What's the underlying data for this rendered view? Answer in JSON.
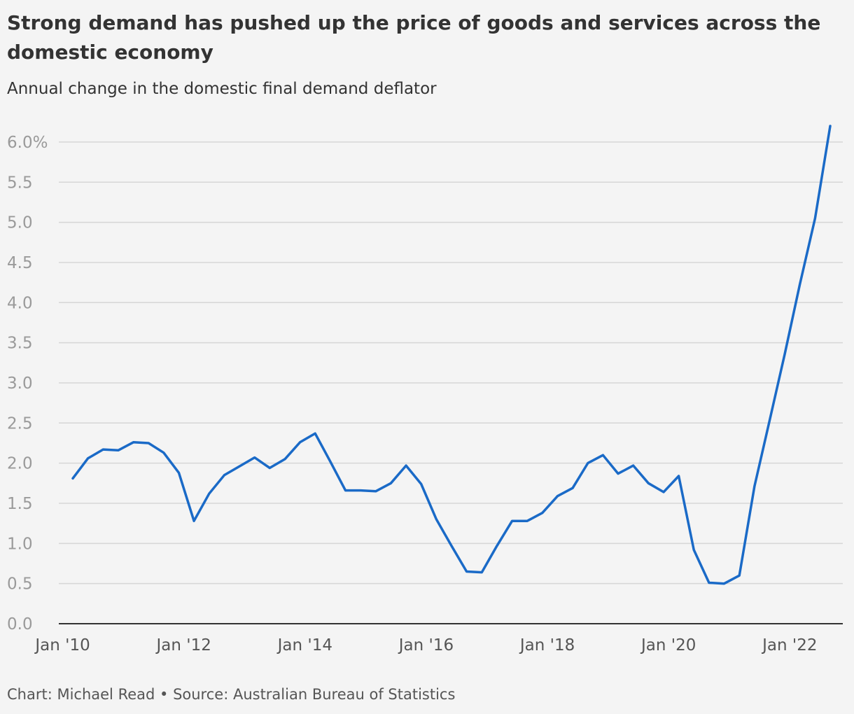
{
  "title": "Strong demand has pushed up the price of goods and services across the domestic economy",
  "subtitle": "Annual change in the domestic final demand deflator",
  "footer": "Chart: Michael Read • Source: Australian Bureau of Statistics",
  "colors": {
    "line": "#1a6ac7",
    "grid": "#d6d6d6",
    "axis": "#333333",
    "background": "#f4f4f4"
  },
  "chart_data": {
    "type": "line",
    "title": "Strong demand has pushed up the price of goods and services across the domestic economy",
    "subtitle": "Annual change in the domestic final demand deflator",
    "xlabel": "",
    "ylabel": "",
    "ylim": [
      0,
      6.2
    ],
    "xlim": [
      "2010-03",
      "2022-09"
    ],
    "grid": true,
    "legend": "none",
    "y_ticks": [
      0,
      0.5,
      1.0,
      1.5,
      2.0,
      2.5,
      3.0,
      3.5,
      4.0,
      4.5,
      5.0,
      5.5,
      6.0
    ],
    "y_tick_labels": [
      "0.0",
      "0.5",
      "1.0",
      "1.5",
      "2.0",
      "2.5",
      "3.0",
      "3.5",
      "4.0",
      "4.5",
      "5.0",
      "5.5",
      "6.0%"
    ],
    "x_ticks": [
      "2010-01",
      "2012-01",
      "2014-01",
      "2016-01",
      "2018-01",
      "2020-01",
      "2022-01"
    ],
    "x_tick_labels": [
      "Jan '10",
      "Jan '12",
      "Jan '14",
      "Jan '16",
      "Jan '18",
      "Jan '20",
      "Jan '22"
    ],
    "series": [
      {
        "x": [
          "2010-03",
          "2010-06",
          "2010-09",
          "2010-12",
          "2011-03",
          "2011-06",
          "2011-09",
          "2011-12",
          "2012-03",
          "2012-06",
          "2012-09",
          "2012-12",
          "2013-03",
          "2013-06",
          "2013-09",
          "2013-12",
          "2014-03",
          "2014-06",
          "2014-09",
          "2014-12",
          "2015-03",
          "2015-06",
          "2015-09",
          "2015-12",
          "2016-03",
          "2016-06",
          "2016-09",
          "2016-12",
          "2017-03",
          "2017-06",
          "2017-09",
          "2017-12",
          "2018-03",
          "2018-06",
          "2018-09",
          "2018-12",
          "2019-03",
          "2019-06",
          "2019-09",
          "2019-12",
          "2020-03",
          "2020-06",
          "2020-09",
          "2020-12",
          "2021-03",
          "2021-06",
          "2021-09",
          "2021-12",
          "2022-03",
          "2022-06",
          "2022-09"
        ],
        "values": [
          1.81,
          2.06,
          2.17,
          2.16,
          2.26,
          2.25,
          2.13,
          1.88,
          1.28,
          1.62,
          1.85,
          1.96,
          2.07,
          1.94,
          2.05,
          2.26,
          2.37,
          2.02,
          1.66,
          1.66,
          1.65,
          1.75,
          1.97,
          1.74,
          1.3,
          0.97,
          0.65,
          0.64,
          0.97,
          1.28,
          1.28,
          1.38,
          1.59,
          1.69,
          2.0,
          2.1,
          1.87,
          1.97,
          1.75,
          1.64,
          1.84,
          0.92,
          0.51,
          0.5,
          0.6,
          1.71,
          2.53,
          3.36,
          4.23,
          5.05,
          6.2
        ]
      }
    ]
  }
}
